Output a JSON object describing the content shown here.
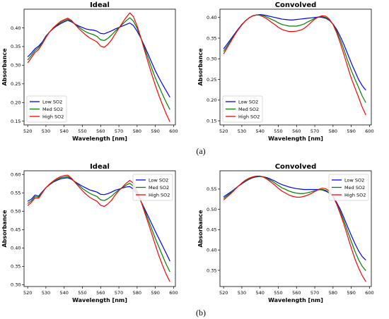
{
  "figure": {
    "panel_labels": [
      "(a)",
      "(b)"
    ]
  },
  "colors": {
    "low": "#0000ff",
    "med": "#008000",
    "high": "#ff0000"
  },
  "chart_data": [
    {
      "type": "line",
      "panel": "(a)",
      "title": "Ideal",
      "xlabel": "Wavelength [nm]",
      "ylabel": "Absorbance",
      "xlim": [
        518,
        601
      ],
      "ylim": [
        0.14,
        0.45
      ],
      "xticks": [
        520,
        530,
        540,
        550,
        560,
        570,
        580,
        590,
        600
      ],
      "yticks": [
        0.15,
        0.2,
        0.25,
        0.3,
        0.35,
        0.4
      ],
      "grid": false,
      "legend": "lower-left",
      "x": [
        520,
        522,
        524,
        526,
        528,
        530,
        532,
        534,
        536,
        538,
        540,
        542,
        544,
        546,
        548,
        550,
        552,
        554,
        556,
        558,
        560,
        562,
        564,
        566,
        568,
        570,
        572,
        574,
        576,
        578,
        580,
        582,
        584,
        586,
        588,
        590,
        592,
        594,
        596,
        598
      ],
      "series": [
        {
          "name": "Low SO2",
          "values": [
            0.322,
            0.332,
            0.344,
            0.351,
            0.362,
            0.378,
            0.389,
            0.398,
            0.405,
            0.411,
            0.416,
            0.42,
            0.416,
            0.41,
            0.405,
            0.401,
            0.397,
            0.395,
            0.394,
            0.391,
            0.385,
            0.384,
            0.388,
            0.392,
            0.397,
            0.401,
            0.405,
            0.409,
            0.413,
            0.406,
            0.391,
            0.373,
            0.352,
            0.33,
            0.307,
            0.285,
            0.266,
            0.248,
            0.231,
            0.214
          ]
        },
        {
          "name": "Med SO2",
          "values": [
            0.314,
            0.326,
            0.339,
            0.347,
            0.36,
            0.376,
            0.389,
            0.399,
            0.407,
            0.414,
            0.419,
            0.423,
            0.418,
            0.409,
            0.402,
            0.395,
            0.389,
            0.385,
            0.382,
            0.377,
            0.368,
            0.366,
            0.372,
            0.381,
            0.391,
            0.4,
            0.41,
            0.419,
            0.427,
            0.418,
            0.399,
            0.374,
            0.347,
            0.32,
            0.292,
            0.266,
            0.243,
            0.221,
            0.2,
            0.181
          ]
        },
        {
          "name": "High SO2",
          "values": [
            0.306,
            0.32,
            0.334,
            0.342,
            0.357,
            0.374,
            0.389,
            0.4,
            0.409,
            0.417,
            0.422,
            0.426,
            0.42,
            0.409,
            0.398,
            0.389,
            0.38,
            0.373,
            0.368,
            0.362,
            0.351,
            0.348,
            0.356,
            0.368,
            0.384,
            0.399,
            0.414,
            0.428,
            0.44,
            0.43,
            0.405,
            0.375,
            0.341,
            0.308,
            0.276,
            0.246,
            0.218,
            0.193,
            0.169,
            0.148
          ]
        }
      ]
    },
    {
      "type": "line",
      "panel": "(a)",
      "title": "Convolved",
      "xlabel": "Wavelength [nm]",
      "ylabel": "Absorbance",
      "xlim": [
        518,
        601
      ],
      "ylim": [
        0.14,
        0.42
      ],
      "xticks": [
        520,
        530,
        540,
        550,
        560,
        570,
        580,
        590,
        600
      ],
      "yticks": [
        0.15,
        0.2,
        0.25,
        0.3,
        0.35,
        0.4
      ],
      "grid": false,
      "legend": "lower-left",
      "x": [
        520,
        522,
        524,
        526,
        528,
        530,
        532,
        534,
        536,
        538,
        540,
        542,
        544,
        546,
        548,
        550,
        552,
        554,
        556,
        558,
        560,
        562,
        564,
        566,
        568,
        570,
        572,
        574,
        576,
        578,
        580,
        582,
        584,
        586,
        588,
        590,
        592,
        594,
        596,
        598
      ],
      "series": [
        {
          "name": "Low SO2",
          "values": [
            0.324,
            0.336,
            0.348,
            0.36,
            0.372,
            0.383,
            0.392,
            0.399,
            0.404,
            0.406,
            0.407,
            0.406,
            0.404,
            0.402,
            0.4,
            0.398,
            0.396,
            0.395,
            0.394,
            0.394,
            0.395,
            0.396,
            0.397,
            0.398,
            0.399,
            0.4,
            0.401,
            0.4,
            0.398,
            0.393,
            0.384,
            0.371,
            0.354,
            0.334,
            0.312,
            0.29,
            0.27,
            0.25,
            0.235,
            0.224
          ]
        },
        {
          "name": "Med SO2",
          "values": [
            0.318,
            0.331,
            0.345,
            0.358,
            0.371,
            0.382,
            0.392,
            0.399,
            0.404,
            0.406,
            0.406,
            0.404,
            0.4,
            0.396,
            0.392,
            0.387,
            0.383,
            0.381,
            0.379,
            0.379,
            0.379,
            0.381,
            0.384,
            0.389,
            0.393,
            0.398,
            0.401,
            0.402,
            0.4,
            0.394,
            0.383,
            0.367,
            0.346,
            0.322,
            0.296,
            0.272,
            0.251,
            0.231,
            0.21,
            0.194
          ]
        },
        {
          "name": "High SO2",
          "values": [
            0.312,
            0.327,
            0.342,
            0.357,
            0.37,
            0.382,
            0.392,
            0.399,
            0.404,
            0.406,
            0.405,
            0.401,
            0.396,
            0.389,
            0.383,
            0.376,
            0.371,
            0.368,
            0.366,
            0.366,
            0.367,
            0.369,
            0.373,
            0.38,
            0.388,
            0.396,
            0.401,
            0.404,
            0.403,
            0.396,
            0.383,
            0.363,
            0.338,
            0.31,
            0.281,
            0.253,
            0.23,
            0.207,
            0.183,
            0.164
          ]
        }
      ]
    },
    {
      "type": "line",
      "panel": "(b)",
      "title": "Ideal",
      "xlabel": "Wavelength [nm]",
      "ylabel": "Absorbance",
      "xlim": [
        518,
        601
      ],
      "ylim": [
        0.295,
        0.61
      ],
      "xticks": [
        520,
        530,
        540,
        550,
        560,
        570,
        580,
        590,
        600
      ],
      "yticks": [
        0.3,
        0.35,
        0.4,
        0.45,
        0.5,
        0.55,
        0.6
      ],
      "grid": false,
      "legend": "upper-right",
      "x": [
        520,
        522,
        524,
        526,
        528,
        530,
        532,
        534,
        536,
        538,
        540,
        542,
        544,
        546,
        548,
        550,
        552,
        554,
        556,
        558,
        560,
        562,
        564,
        566,
        568,
        570,
        572,
        574,
        576,
        578,
        580,
        582,
        584,
        586,
        588,
        590,
        592,
        594,
        596,
        598
      ],
      "series": [
        {
          "name": "Low SO2",
          "values": [
            0.527,
            0.533,
            0.544,
            0.541,
            0.553,
            0.564,
            0.572,
            0.579,
            0.584,
            0.588,
            0.59,
            0.591,
            0.587,
            0.58,
            0.574,
            0.568,
            0.563,
            0.558,
            0.555,
            0.552,
            0.546,
            0.545,
            0.548,
            0.552,
            0.557,
            0.56,
            0.563,
            0.566,
            0.567,
            0.56,
            0.545,
            0.528,
            0.508,
            0.487,
            0.466,
            0.445,
            0.425,
            0.405,
            0.385,
            0.364
          ]
        },
        {
          "name": "Med SO2",
          "values": [
            0.521,
            0.528,
            0.54,
            0.538,
            0.552,
            0.564,
            0.573,
            0.58,
            0.586,
            0.591,
            0.593,
            0.594,
            0.589,
            0.579,
            0.571,
            0.562,
            0.555,
            0.549,
            0.544,
            0.54,
            0.531,
            0.529,
            0.534,
            0.541,
            0.55,
            0.558,
            0.564,
            0.571,
            0.576,
            0.568,
            0.55,
            0.528,
            0.504,
            0.478,
            0.452,
            0.426,
            0.402,
            0.378,
            0.355,
            0.335
          ]
        },
        {
          "name": "High SO2",
          "values": [
            0.515,
            0.524,
            0.536,
            0.535,
            0.55,
            0.564,
            0.574,
            0.582,
            0.589,
            0.594,
            0.597,
            0.598,
            0.59,
            0.578,
            0.567,
            0.556,
            0.546,
            0.538,
            0.532,
            0.527,
            0.516,
            0.513,
            0.52,
            0.53,
            0.544,
            0.556,
            0.566,
            0.576,
            0.584,
            0.576,
            0.555,
            0.529,
            0.499,
            0.469,
            0.439,
            0.408,
            0.378,
            0.352,
            0.328,
            0.308
          ]
        }
      ]
    },
    {
      "type": "line",
      "panel": "(b)",
      "title": "Convolved",
      "xlabel": "Wavelength [nm]",
      "ylabel": "Absorbance",
      "xlim": [
        518,
        601
      ],
      "ylim": [
        0.31,
        0.595
      ],
      "xticks": [
        520,
        530,
        540,
        550,
        560,
        570,
        580,
        590,
        600
      ],
      "yticks": [
        0.35,
        0.4,
        0.45,
        0.5,
        0.55
      ],
      "grid": false,
      "legend": "upper-right",
      "x": [
        520,
        522,
        524,
        526,
        528,
        530,
        532,
        534,
        536,
        538,
        540,
        542,
        544,
        546,
        548,
        550,
        552,
        554,
        556,
        558,
        560,
        562,
        564,
        566,
        568,
        570,
        572,
        574,
        576,
        578,
        580,
        582,
        584,
        586,
        588,
        590,
        592,
        594,
        596,
        598
      ],
      "series": [
        {
          "name": "Low SO2",
          "values": [
            0.531,
            0.537,
            0.543,
            0.55,
            0.557,
            0.563,
            0.569,
            0.574,
            0.578,
            0.58,
            0.581,
            0.58,
            0.578,
            0.574,
            0.57,
            0.565,
            0.561,
            0.558,
            0.555,
            0.553,
            0.551,
            0.55,
            0.549,
            0.549,
            0.549,
            0.549,
            0.549,
            0.548,
            0.545,
            0.54,
            0.531,
            0.517,
            0.5,
            0.479,
            0.457,
            0.436,
            0.416,
            0.398,
            0.384,
            0.375
          ]
        },
        {
          "name": "Med SO2",
          "values": [
            0.527,
            0.534,
            0.541,
            0.549,
            0.557,
            0.564,
            0.57,
            0.575,
            0.579,
            0.581,
            0.581,
            0.58,
            0.576,
            0.571,
            0.565,
            0.559,
            0.553,
            0.549,
            0.545,
            0.542,
            0.54,
            0.539,
            0.539,
            0.541,
            0.543,
            0.546,
            0.548,
            0.549,
            0.547,
            0.541,
            0.53,
            0.514,
            0.494,
            0.471,
            0.446,
            0.421,
            0.397,
            0.376,
            0.36,
            0.349
          ]
        },
        {
          "name": "High SO2",
          "values": [
            0.523,
            0.531,
            0.539,
            0.548,
            0.557,
            0.565,
            0.572,
            0.577,
            0.58,
            0.582,
            0.582,
            0.579,
            0.574,
            0.567,
            0.56,
            0.552,
            0.545,
            0.54,
            0.535,
            0.532,
            0.53,
            0.53,
            0.532,
            0.535,
            0.539,
            0.544,
            0.549,
            0.552,
            0.551,
            0.545,
            0.532,
            0.513,
            0.489,
            0.463,
            0.434,
            0.405,
            0.378,
            0.356,
            0.337,
            0.322
          ]
        }
      ]
    }
  ]
}
